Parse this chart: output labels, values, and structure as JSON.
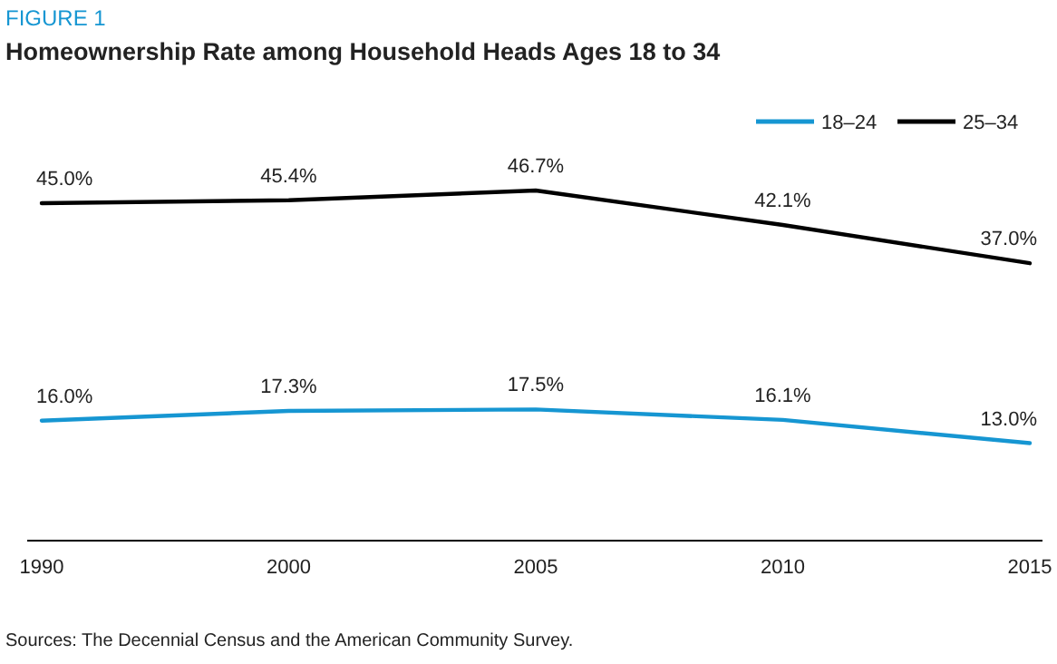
{
  "chart_data": {
    "type": "line",
    "title": "Homeownership Rate among Household Heads Ages 18 to 34",
    "annotations": [
      "FIGURE 1",
      "Sources: The Decennial Census and the American Community Survey."
    ],
    "categories": [
      "1990",
      "2000",
      "2005",
      "2010",
      "2015"
    ],
    "legend": "top right",
    "grid": false,
    "marker": "none",
    "line_style": "solid",
    "series": [
      {
        "name": "18–24",
        "color": "#1696d2",
        "values": [
          16.0,
          17.3,
          17.5,
          16.1,
          13.0
        ],
        "value_labels": [
          "16.0%",
          "17.3%",
          "17.5%",
          "16.1%",
          "13.0%"
        ]
      },
      {
        "name": "25–34",
        "color": "#000000",
        "values": [
          45.0,
          45.4,
          46.7,
          42.1,
          37.0
        ],
        "value_labels": [
          "45.0%",
          "45.4%",
          "46.7%",
          "42.1%",
          "37.0%"
        ]
      }
    ]
  }
}
